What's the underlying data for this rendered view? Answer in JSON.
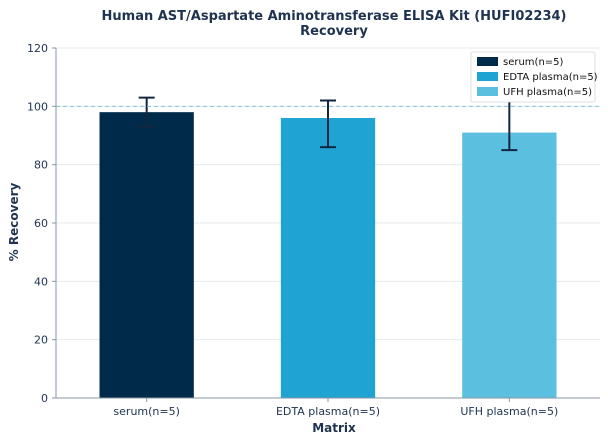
{
  "chart_data": {
    "type": "bar",
    "title": "Human AST/Aspartate Aminotransferase ELISA Kit (HUFI02234)",
    "subtitle": "Recovery",
    "xlabel": "Matrix",
    "ylabel": "% Recovery",
    "ylim": [
      0,
      120
    ],
    "yticks": [
      "0",
      "20",
      "40",
      "60",
      "80",
      "100",
      "120"
    ],
    "reference_line": 100,
    "grid": true,
    "legend_position": "top-right",
    "categories": [
      "serum(n=5)",
      "EDTA plasma(n=5)",
      "UFH plasma(n=5)"
    ],
    "values": [
      98,
      96,
      91
    ],
    "error_low": [
      93,
      86,
      85
    ],
    "error_high": [
      103,
      102,
      103
    ],
    "colors": [
      "#002a4a",
      "#1ea3d3",
      "#5bbfe0"
    ],
    "legend": [
      "serum(n=5)",
      "EDTA plasma(n=5)",
      "UFH plasma(n=5)"
    ],
    "error_bar_color": "#12263f",
    "reference_color": "#7fc4d6",
    "grid_color": "#e6eaee",
    "axis_color": "#8a96a3"
  }
}
